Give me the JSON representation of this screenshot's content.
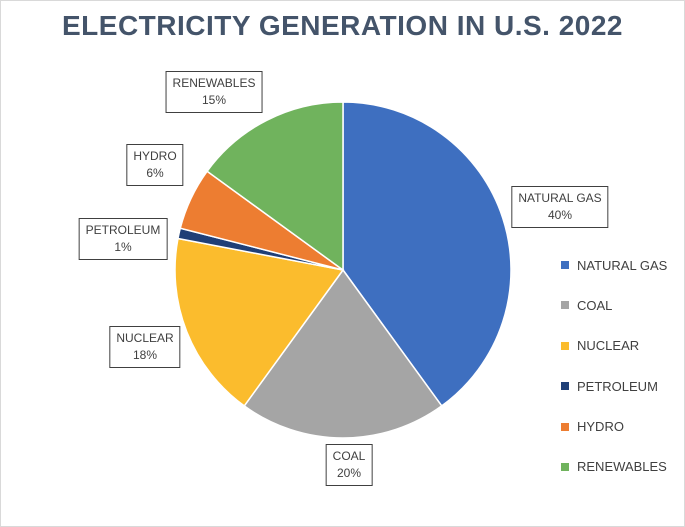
{
  "chart_data": {
    "type": "pie",
    "title": "ELECTRICITY GENERATION IN U.S. 2022",
    "slices": [
      {
        "name": "NATURAL GAS",
        "value": 40,
        "label": "40%",
        "color": "#3e6fc0"
      },
      {
        "name": "COAL",
        "value": 20,
        "label": "20%",
        "color": "#a5a5a5"
      },
      {
        "name": "NUCLEAR",
        "value": 18,
        "label": "18%",
        "color": "#fbbc2d"
      },
      {
        "name": "PETROLEUM",
        "value": 1,
        "label": "1%",
        "color": "#1f3f77"
      },
      {
        "name": "HYDRO",
        "value": 6,
        "label": "6%",
        "color": "#ed7d31"
      },
      {
        "name": "RENEWABLES",
        "value": 15,
        "label": "15%",
        "color": "#70b35d"
      }
    ],
    "legend_position": "right"
  }
}
